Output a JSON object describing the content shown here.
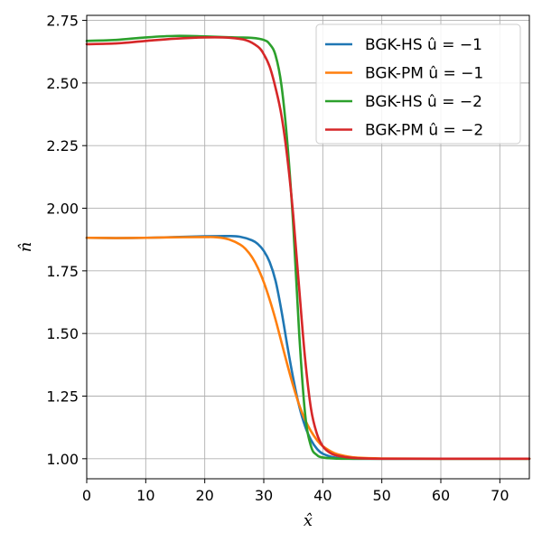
{
  "chart_data": {
    "type": "line",
    "xlabel": "x̂",
    "ylabel": "n̂",
    "xlim": [
      0,
      75
    ],
    "ylim": [
      0.92,
      2.77
    ],
    "xticks": [
      0,
      10,
      20,
      30,
      40,
      50,
      60,
      70
    ],
    "yticks": [
      1.0,
      1.25,
      1.5,
      1.75,
      2.0,
      2.25,
      2.5,
      2.75
    ],
    "xtick_labels": [
      "0",
      "10",
      "20",
      "30",
      "40",
      "50",
      "60",
      "70"
    ],
    "ytick_labels": [
      "1.00",
      "1.25",
      "1.50",
      "1.75",
      "2.00",
      "2.25",
      "2.50",
      "2.75"
    ],
    "grid": true,
    "legend_position": "top-right",
    "series": [
      {
        "name": "BGK-HS û = −1",
        "color": "#1f77b4",
        "x": [
          0,
          5,
          10,
          15,
          20,
          24,
          26,
          28,
          29,
          30,
          31,
          32,
          33,
          34,
          35,
          36,
          37,
          38,
          39,
          40,
          42,
          44,
          46,
          50,
          60,
          75
        ],
        "y": [
          1.882,
          1.881,
          1.882,
          1.885,
          1.888,
          1.889,
          1.886,
          1.872,
          1.857,
          1.83,
          1.785,
          1.71,
          1.59,
          1.45,
          1.32,
          1.21,
          1.13,
          1.075,
          1.04,
          1.02,
          1.005,
          1.001,
          1.0,
          1.0,
          1.0,
          1.0
        ]
      },
      {
        "name": "BGK-PM û = −1",
        "color": "#ff7f0e",
        "x": [
          0,
          5,
          10,
          15,
          20,
          22,
          24,
          26,
          27,
          28,
          29,
          30,
          31,
          32,
          33,
          34,
          35,
          36,
          37,
          38,
          39,
          40,
          42,
          44,
          46,
          50,
          60,
          75
        ],
        "y": [
          1.882,
          1.881,
          1.882,
          1.884,
          1.885,
          1.884,
          1.876,
          1.855,
          1.835,
          1.805,
          1.762,
          1.705,
          1.635,
          1.555,
          1.465,
          1.375,
          1.29,
          1.215,
          1.155,
          1.11,
          1.075,
          1.05,
          1.022,
          1.01,
          1.004,
          1.001,
          1.0,
          1.0
        ]
      },
      {
        "name": "BGK-HS û = −2",
        "color": "#2ca02c",
        "x": [
          0,
          5,
          10,
          15,
          20,
          25,
          28,
          30,
          31,
          32,
          33,
          34,
          35,
          36,
          37,
          38,
          39,
          40,
          42,
          44,
          46,
          50,
          60,
          75
        ],
        "y": [
          2.668,
          2.672,
          2.682,
          2.688,
          2.686,
          2.682,
          2.68,
          2.672,
          2.655,
          2.61,
          2.49,
          2.26,
          1.93,
          1.5,
          1.18,
          1.05,
          1.015,
          1.005,
          1.001,
          1.0,
          1.0,
          1.0,
          1.0,
          1.0
        ]
      },
      {
        "name": "BGK-PM û = −2",
        "color": "#d62728",
        "x": [
          0,
          5,
          10,
          15,
          20,
          24,
          27,
          29,
          30,
          31,
          32,
          33,
          34,
          35,
          36,
          37,
          38,
          39,
          40,
          41,
          42,
          44,
          46,
          50,
          60,
          75
        ],
        "y": [
          2.655,
          2.658,
          2.668,
          2.677,
          2.682,
          2.681,
          2.671,
          2.645,
          2.615,
          2.565,
          2.48,
          2.37,
          2.2,
          1.97,
          1.68,
          1.4,
          1.2,
          1.1,
          1.05,
          1.027,
          1.015,
          1.006,
          1.002,
          1.0,
          1.0,
          1.0
        ]
      }
    ]
  }
}
